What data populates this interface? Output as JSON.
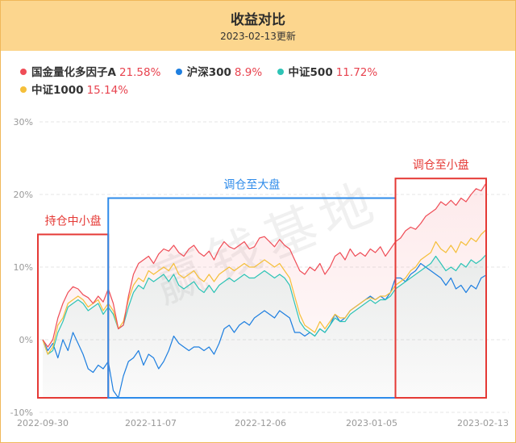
{
  "header": {
    "title": "收益对比",
    "subtitle": "2023-02-13更新"
  },
  "legend": [
    {
      "name": "国金量化多因子A",
      "value": "21.58%",
      "color": "#ef4d57"
    },
    {
      "name": "沪深300",
      "value": "8.9%",
      "color": "#1e7fe0"
    },
    {
      "name": "中证500",
      "value": "11.72%",
      "color": "#2ec4b6"
    },
    {
      "name": "中证1000",
      "value": "15.14%",
      "color": "#f5bf3a"
    }
  ],
  "watermark": "赢钱基地",
  "chart_data": {
    "type": "line",
    "x_ticks": [
      "2022-09-30",
      "2022-11-07",
      "2022-12-06",
      "2023-01-05",
      "2023-02-13"
    ],
    "y_ticks": [
      "30%",
      "20%",
      "10%",
      "0%",
      "-10%"
    ],
    "ylim": [
      -10,
      30
    ],
    "grid": true,
    "series": [
      {
        "name": "国金量化多因子A",
        "color": "#ef4d57",
        "values": [
          0.0,
          -1.0,
          0.0,
          3.0,
          5.0,
          6.5,
          7.3,
          7.0,
          6.2,
          5.8,
          5.0,
          6.0,
          5.2,
          7.0,
          5.0,
          1.5,
          2.0,
          6.0,
          9.0,
          10.5,
          11.0,
          11.5,
          10.5,
          11.8,
          12.5,
          12.2,
          13.0,
          12.0,
          11.5,
          12.5,
          13.0,
          12.0,
          11.5,
          12.2,
          11.0,
          12.5,
          13.5,
          12.8,
          12.5,
          13.0,
          13.5,
          12.5,
          12.8,
          14.0,
          14.2,
          13.5,
          12.8,
          13.8,
          13.0,
          12.5,
          11.0,
          9.5,
          9.0,
          10.0,
          9.5,
          10.5,
          9.0,
          10.0,
          11.5,
          12.0,
          11.0,
          12.5,
          11.5,
          12.0,
          11.5,
          12.5,
          12.0,
          12.8,
          11.5,
          12.5,
          13.5,
          14.0,
          15.0,
          15.5,
          15.2,
          16.0,
          17.0,
          17.5,
          18.0,
          19.0,
          18.5,
          19.2,
          18.5,
          19.5,
          19.0,
          20.0,
          20.8,
          20.5,
          21.58
        ]
      },
      {
        "name": "沪深300",
        "color": "#1e7fe0",
        "values": [
          0.0,
          -1.5,
          -0.5,
          -2.5,
          0.0,
          -1.5,
          1.0,
          -0.5,
          -2.0,
          -4.0,
          -4.5,
          -3.5,
          -4.0,
          -3.0,
          -7.0,
          -8.0,
          -5.0,
          -3.0,
          -2.5,
          -1.5,
          -3.5,
          -2.0,
          -2.5,
          -4.0,
          -3.0,
          -1.5,
          0.5,
          -0.5,
          -1.0,
          -1.5,
          -1.0,
          -1.0,
          -1.5,
          -1.0,
          -2.0,
          -0.5,
          1.5,
          2.0,
          1.0,
          2.0,
          2.5,
          2.0,
          3.0,
          3.5,
          4.0,
          3.5,
          3.0,
          4.0,
          3.5,
          3.0,
          1.0,
          1.0,
          0.5,
          1.0,
          0.5,
          1.5,
          1.0,
          2.0,
          3.5,
          2.5,
          3.0,
          4.0,
          4.5,
          5.0,
          5.5,
          6.0,
          5.5,
          6.0,
          5.5,
          6.5,
          8.5,
          8.5,
          8.0,
          9.0,
          9.5,
          10.5,
          10.0,
          9.5,
          9.0,
          8.5,
          7.5,
          8.5,
          7.0,
          7.5,
          6.5,
          7.5,
          7.0,
          8.5,
          8.9
        ]
      },
      {
        "name": "中证500",
        "color": "#2ec4b6",
        "values": [
          0.0,
          -2.0,
          -1.5,
          1.0,
          2.5,
          4.5,
          5.0,
          5.5,
          5.0,
          4.0,
          4.5,
          5.0,
          3.5,
          4.5,
          3.5,
          1.5,
          2.0,
          4.5,
          6.5,
          7.5,
          7.0,
          8.5,
          8.0,
          8.5,
          9.0,
          8.0,
          9.0,
          7.5,
          7.0,
          7.5,
          8.0,
          7.0,
          6.5,
          7.5,
          6.5,
          7.5,
          8.0,
          8.5,
          8.0,
          8.5,
          9.0,
          8.5,
          8.5,
          9.0,
          9.5,
          9.0,
          8.5,
          9.0,
          8.5,
          7.5,
          5.0,
          2.5,
          1.5,
          1.0,
          0.5,
          1.5,
          1.0,
          2.0,
          3.0,
          2.5,
          2.5,
          3.5,
          4.0,
          4.5,
          5.0,
          5.5,
          5.0,
          5.5,
          5.5,
          6.0,
          7.0,
          7.5,
          8.0,
          8.5,
          9.0,
          9.5,
          10.0,
          10.5,
          11.5,
          10.5,
          9.5,
          10.0,
          9.5,
          10.5,
          10.0,
          11.0,
          10.5,
          11.0,
          11.72
        ]
      },
      {
        "name": "中证1000",
        "color": "#f5bf3a",
        "values": [
          0.0,
          -2.0,
          -1.0,
          2.0,
          3.0,
          5.0,
          5.5,
          6.0,
          5.5,
          4.5,
          5.0,
          5.5,
          4.0,
          5.0,
          4.0,
          1.5,
          2.5,
          5.5,
          7.5,
          8.5,
          8.0,
          9.5,
          9.0,
          9.5,
          10.0,
          9.5,
          10.5,
          9.0,
          8.5,
          9.0,
          9.5,
          8.5,
          8.0,
          9.0,
          8.0,
          9.0,
          9.5,
          10.0,
          9.5,
          10.0,
          10.5,
          10.0,
          10.0,
          10.5,
          11.0,
          10.5,
          10.0,
          10.5,
          9.5,
          8.5,
          6.0,
          3.5,
          2.0,
          1.5,
          1.0,
          2.5,
          1.5,
          2.5,
          3.5,
          3.0,
          3.0,
          4.0,
          4.5,
          5.0,
          5.5,
          5.8,
          5.5,
          6.0,
          6.0,
          6.5,
          7.5,
          8.0,
          8.5,
          9.5,
          10.0,
          11.0,
          11.5,
          12.0,
          13.5,
          12.5,
          12.0,
          13.0,
          12.0,
          13.5,
          13.0,
          14.0,
          13.5,
          14.5,
          15.14
        ]
      }
    ],
    "annotations": [
      {
        "label": "持仓中小盘",
        "color": "#e53935",
        "start_index": 0,
        "end_index": 13,
        "y_range": [
          -8,
          14.5
        ]
      },
      {
        "label": "调仓至大盘",
        "color": "#2e8bea",
        "start_index": 13,
        "end_index": 70,
        "y_range": [
          -8,
          19.5
        ]
      },
      {
        "label": "调仓至小盘",
        "color": "#e53935",
        "start_index": 70,
        "end_index": 88,
        "y_range": [
          -8,
          22.2
        ]
      }
    ]
  }
}
